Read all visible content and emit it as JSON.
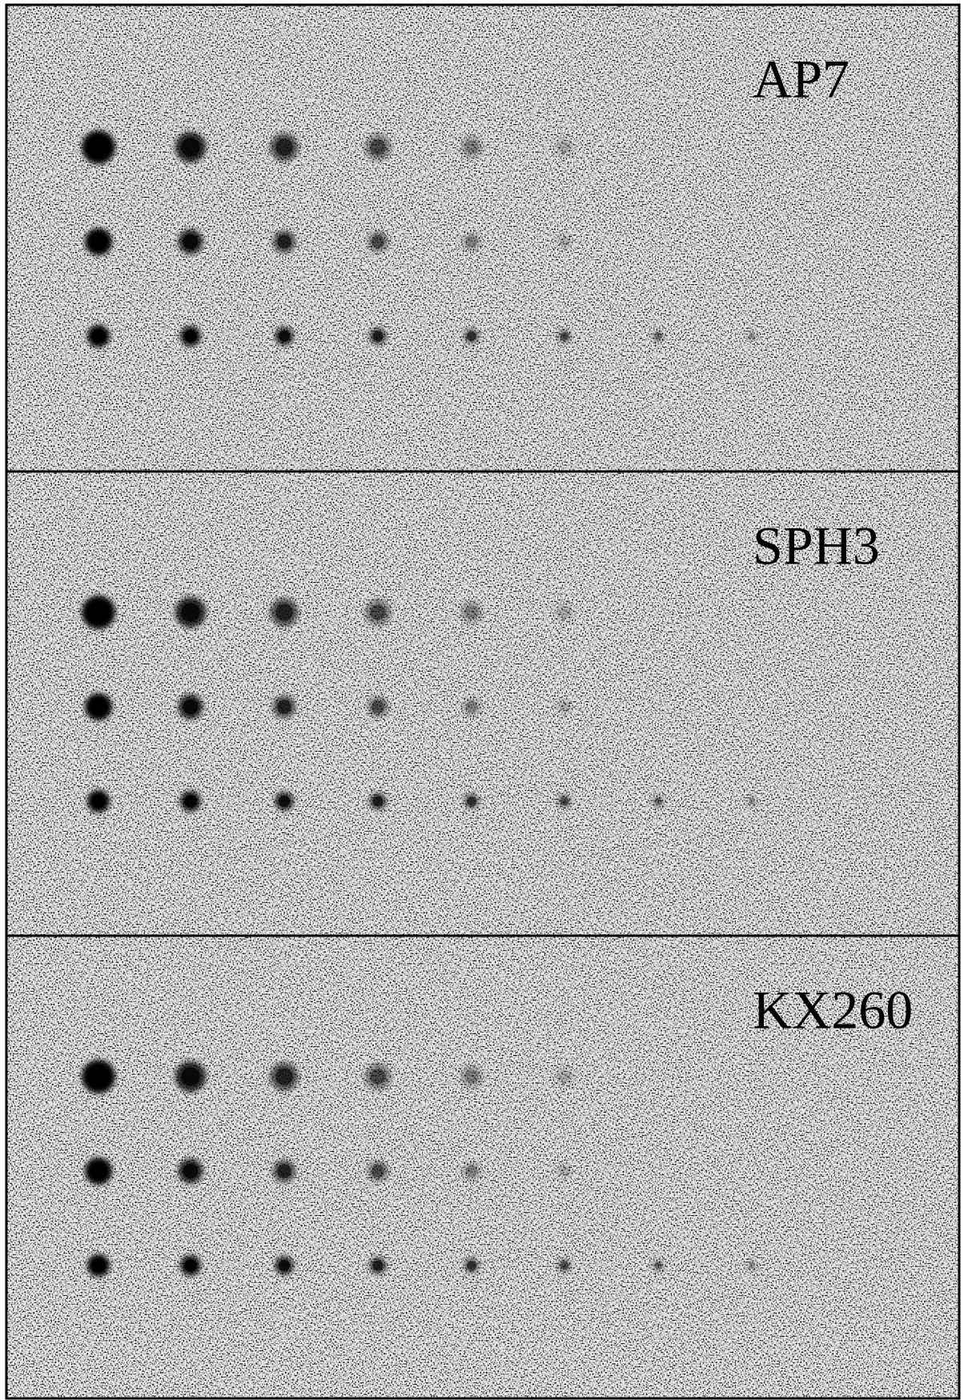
{
  "panels": [
    {
      "label": "AP7"
    },
    {
      "label": "SPH3"
    },
    {
      "label": "KX260"
    }
  ]
}
